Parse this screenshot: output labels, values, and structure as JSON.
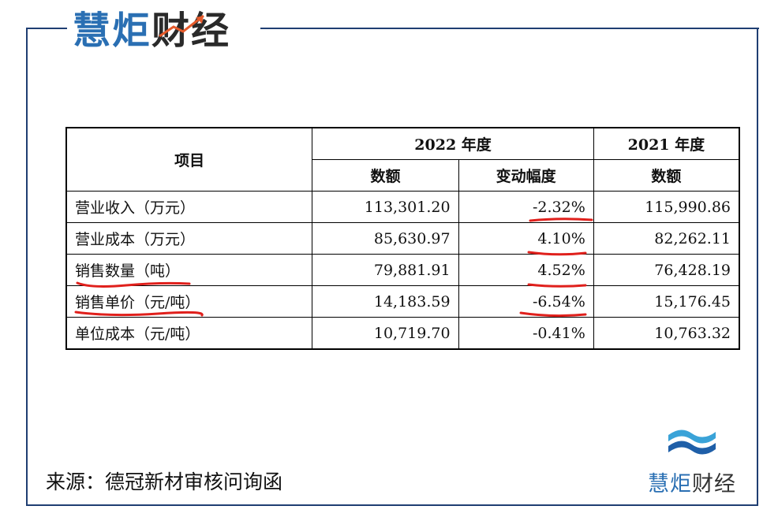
{
  "brand": {
    "part1": "慧炬",
    "part2": "财经"
  },
  "table": {
    "header": {
      "item": "项目",
      "year2022": "2022 年度",
      "year2021": "2021 年度",
      "amount": "数额",
      "change": "变动幅度",
      "amount2021": "数额"
    },
    "rows": [
      {
        "label": "营业收入（万元）",
        "v2022": "113,301.20",
        "change": "-2.32%",
        "v2021": "115,990.86"
      },
      {
        "label": "营业成本（万元）",
        "v2022": "85,630.97",
        "change": "4.10%",
        "v2021": "82,262.11"
      },
      {
        "label": "销售数量（吨）",
        "v2022": "79,881.91",
        "change": "4.52%",
        "v2021": "76,428.19"
      },
      {
        "label": "销售单价（元/吨）",
        "v2022": "14,183.59",
        "change": "-6.54%",
        "v2021": "15,176.45"
      },
      {
        "label": "单位成本（元/吨）",
        "v2022": "10,719.70",
        "change": "-0.41%",
        "v2021": "10,763.32"
      }
    ]
  },
  "source": "来源：德冠新材审核问询函",
  "colors": {
    "brand_blue": "#2a6fb3",
    "frame": "#1f3e72",
    "annotation_red": "#e0201c"
  }
}
